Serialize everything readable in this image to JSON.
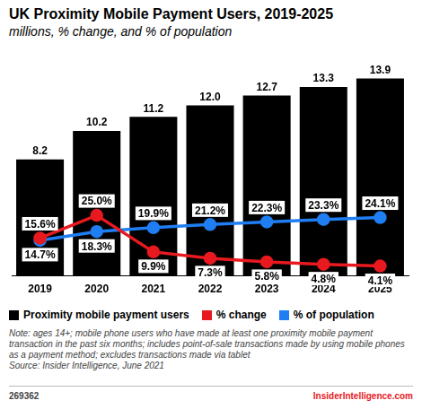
{
  "chart_data": {
    "type": "bar",
    "title": "UK Proximity Mobile Payment Users, 2019-2025",
    "subtitle": "millions, % change, and % of population",
    "categories": [
      "2019",
      "2020",
      "2021",
      "2022",
      "2023",
      "2024",
      "2025"
    ],
    "series": [
      {
        "name": "Proximity mobile payment users",
        "type": "bar",
        "color": "#000000",
        "values": [
          8.2,
          10.2,
          11.2,
          12.0,
          12.7,
          13.3,
          13.9
        ],
        "value_labels": [
          "8.2",
          "10.2",
          "11.2",
          "12.0",
          "12.7",
          "13.3",
          "13.9"
        ]
      },
      {
        "name": "% change",
        "type": "line",
        "color": "#e8191f",
        "marker": "circle",
        "axis": "y2",
        "values": [
          15.6,
          25.0,
          9.9,
          7.3,
          5.8,
          4.8,
          4.1
        ],
        "value_labels": [
          "15.6%",
          "25.0%",
          "9.9%",
          "7.3%",
          "5.8%",
          "4.8%",
          "4.1%"
        ]
      },
      {
        "name": "% of population",
        "type": "line",
        "color": "#1f7ef2",
        "marker": "circle",
        "axis": "y2",
        "values": [
          14.7,
          18.3,
          19.9,
          21.2,
          22.3,
          23.3,
          24.1
        ],
        "value_labels": [
          "14.7%",
          "18.3%",
          "19.9%",
          "21.2%",
          "22.3%",
          "23.3%",
          "24.1%"
        ]
      }
    ],
    "ylim": [
      0,
      15
    ],
    "y2lim": [
      0,
      88
    ],
    "grid": false,
    "legend": "bottom",
    "data_labels": true,
    "tick_labels": "x",
    "note": "Note: ages 14+; mobile phone users who have made at least one proximity mobile payment transaction in the past six months; includes point-of-sale transactions made by using mobile phones as a payment method; excludes transactions made via tablet",
    "source": "Source: Insider Intelligence, June 2021",
    "chart_id": "269362",
    "brand": "InsiderIntelligence.com"
  }
}
